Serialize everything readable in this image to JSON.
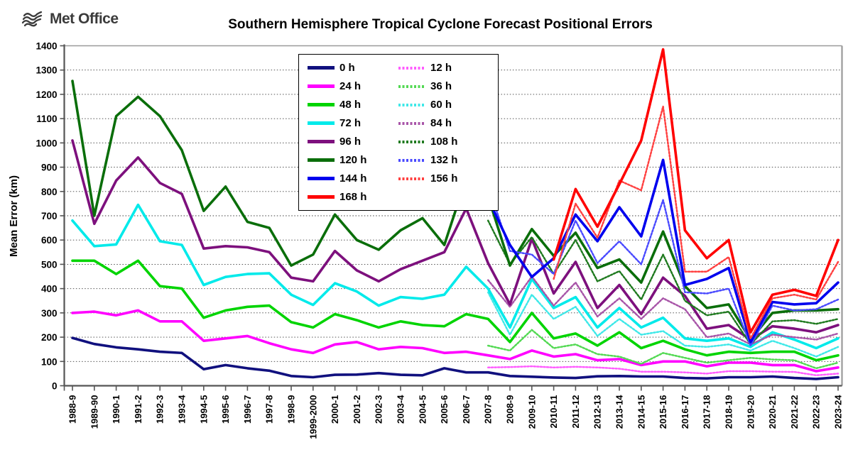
{
  "header": {
    "logo_text": "Met Office",
    "title": "Southern Hemisphere Tropical Cyclone Forecast Positional Errors"
  },
  "chart_data": {
    "type": "line",
    "title": "Southern Hemisphere Tropical Cyclone Forecast Positional Errors",
    "xlabel": "",
    "ylabel": "Mean Error (km)",
    "ylim": [
      0,
      1400
    ],
    "ytick_step": 100,
    "grid": "horizontal dotted gridlines every 100 km",
    "legend_position": "inside top, two columns (solid lines left, dotted lines right)",
    "categories": [
      "1988-9",
      "1989-90",
      "1990-1",
      "1991-2",
      "1992-3",
      "1993-4",
      "1994-5",
      "1995-6",
      "1996-7",
      "1997-8",
      "1998-9",
      "1999-2000",
      "2000-1",
      "2001-2",
      "2002-3",
      "2003-4",
      "2004-5",
      "2005-6",
      "2006-7",
      "2007-8",
      "2008-9",
      "2009-10",
      "2010-11",
      "2011-12",
      "2012-13",
      "2013-14",
      "2014-15",
      "2015-16",
      "2016-17",
      "2017-18",
      "2018-19",
      "2019-20",
      "2020-21",
      "2021-22",
      "2022-23",
      "2023-24"
    ],
    "series": [
      {
        "name": "0 h",
        "color": "#10107E",
        "line": "solid",
        "values": [
          197,
          172,
          158,
          150,
          140,
          135,
          68,
          85,
          72,
          62,
          40,
          35,
          45,
          46,
          52,
          45,
          43,
          72,
          55,
          55,
          40,
          37,
          34,
          32,
          39,
          40,
          38,
          38,
          32,
          30,
          35,
          35,
          38,
          32,
          28,
          35
        ]
      },
      {
        "name": "12 h",
        "color": "#FF5CFF",
        "line": "dotted",
        "values": [
          null,
          null,
          null,
          null,
          null,
          null,
          null,
          null,
          null,
          null,
          null,
          null,
          null,
          null,
          null,
          null,
          null,
          null,
          null,
          75,
          77,
          80,
          75,
          78,
          75,
          70,
          58,
          58,
          55,
          50,
          60,
          60,
          58,
          57,
          43,
          50
        ]
      },
      {
        "name": "24 h",
        "color": "#FF00FF",
        "line": "solid",
        "values": [
          300,
          305,
          290,
          310,
          265,
          265,
          185,
          195,
          205,
          175,
          150,
          135,
          170,
          180,
          150,
          160,
          155,
          135,
          140,
          125,
          110,
          145,
          120,
          130,
          105,
          110,
          85,
          100,
          100,
          80,
          95,
          95,
          85,
          85,
          60,
          75
        ]
      },
      {
        "name": "36 h",
        "color": "#53D953",
        "line": "dotted",
        "values": [
          null,
          null,
          null,
          null,
          null,
          null,
          null,
          null,
          null,
          null,
          null,
          null,
          null,
          null,
          null,
          null,
          null,
          null,
          null,
          165,
          145,
          230,
          155,
          170,
          130,
          120,
          90,
          135,
          115,
          95,
          105,
          115,
          108,
          105,
          72,
          95
        ]
      },
      {
        "name": "48 h",
        "color": "#00D400",
        "line": "solid",
        "values": [
          515,
          515,
          460,
          515,
          410,
          400,
          280,
          310,
          325,
          330,
          262,
          240,
          295,
          270,
          240,
          265,
          250,
          245,
          295,
          275,
          180,
          300,
          195,
          215,
          165,
          220,
          155,
          185,
          150,
          125,
          140,
          135,
          140,
          140,
          105,
          125
        ]
      },
      {
        "name": "60 h",
        "color": "#3FE8E8",
        "line": "dotted",
        "values": [
          null,
          null,
          null,
          null,
          null,
          null,
          null,
          null,
          null,
          null,
          null,
          null,
          null,
          null,
          null,
          null,
          null,
          null,
          null,
          385,
          210,
          375,
          275,
          325,
          205,
          275,
          210,
          225,
          165,
          160,
          170,
          145,
          185,
          155,
          120,
          160
        ]
      },
      {
        "name": "72 h",
        "color": "#00EAEA",
        "line": "solid",
        "values": [
          680,
          575,
          582,
          745,
          595,
          580,
          415,
          448,
          460,
          463,
          375,
          333,
          422,
          388,
          330,
          365,
          358,
          375,
          490,
          400,
          240,
          440,
          320,
          365,
          240,
          320,
          240,
          280,
          195,
          185,
          195,
          160,
          220,
          190,
          155,
          195
        ]
      },
      {
        "name": "84 h",
        "color": "#A855A8",
        "line": "dotted",
        "values": [
          null,
          null,
          null,
          null,
          null,
          null,
          null,
          null,
          null,
          null,
          null,
          null,
          null,
          null,
          null,
          null,
          null,
          null,
          null,
          435,
          325,
          450,
          330,
          425,
          285,
          360,
          275,
          360,
          315,
          200,
          215,
          170,
          210,
          200,
          190,
          215
        ]
      },
      {
        "name": "96 h",
        "color": "#7D107D",
        "line": "solid",
        "values": [
          1010,
          667,
          845,
          940,
          835,
          790,
          565,
          575,
          570,
          550,
          445,
          430,
          555,
          475,
          430,
          480,
          515,
          550,
          730,
          505,
          335,
          605,
          380,
          510,
          320,
          415,
          295,
          445,
          370,
          235,
          250,
          190,
          245,
          235,
          220,
          250
        ]
      },
      {
        "name": "108 h",
        "color": "#1F7A1F",
        "line": "dotted",
        "values": [
          null,
          null,
          null,
          null,
          null,
          null,
          null,
          null,
          null,
          null,
          null,
          null,
          null,
          null,
          null,
          null,
          null,
          null,
          null,
          680,
          500,
          612,
          460,
          600,
          430,
          472,
          355,
          540,
          350,
          290,
          305,
          170,
          265,
          270,
          255,
          275
        ]
      },
      {
        "name": "120 h",
        "color": "#0A6E0A",
        "line": "solid",
        "values": [
          1255,
          700,
          1110,
          1190,
          1110,
          970,
          720,
          820,
          675,
          650,
          495,
          540,
          705,
          600,
          560,
          640,
          690,
          580,
          855,
          780,
          495,
          645,
          535,
          630,
          485,
          520,
          425,
          635,
          410,
          320,
          335,
          190,
          300,
          310,
          310,
          315
        ]
      },
      {
        "name": "132 h",
        "color": "#4A4AFF",
        "line": "dotted",
        "values": [
          null,
          null,
          null,
          null,
          null,
          null,
          null,
          null,
          null,
          null,
          null,
          null,
          null,
          null,
          null,
          null,
          null,
          null,
          null,
          825,
          555,
          540,
          460,
          680,
          505,
          595,
          500,
          765,
          385,
          380,
          400,
          165,
          330,
          310,
          315,
          355
        ]
      },
      {
        "name": "144 h",
        "color": "#0000EE",
        "line": "solid",
        "values": [
          null,
          null,
          null,
          null,
          null,
          null,
          null,
          null,
          null,
          null,
          null,
          null,
          null,
          null,
          null,
          null,
          null,
          null,
          null,
          770,
          580,
          448,
          525,
          705,
          595,
          735,
          615,
          930,
          415,
          440,
          485,
          180,
          345,
          335,
          340,
          425
        ]
      },
      {
        "name": "156 h",
        "color": "#FF4040",
        "line": "dotted",
        "values": [
          null,
          null,
          null,
          null,
          null,
          null,
          null,
          null,
          null,
          null,
          null,
          null,
          null,
          null,
          null,
          null,
          null,
          null,
          null,
          null,
          null,
          null,
          440,
          750,
          610,
          845,
          805,
          1150,
          470,
          470,
          530,
          195,
          360,
          375,
          355,
          510
        ]
      },
      {
        "name": "168 h",
        "color": "#FF0000",
        "line": "solid",
        "values": [
          null,
          null,
          null,
          null,
          null,
          null,
          null,
          null,
          null,
          null,
          null,
          null,
          null,
          null,
          null,
          null,
          null,
          null,
          null,
          null,
          null,
          null,
          520,
          810,
          655,
          830,
          1010,
          1385,
          640,
          525,
          600,
          220,
          375,
          395,
          370,
          600
        ]
      }
    ]
  }
}
